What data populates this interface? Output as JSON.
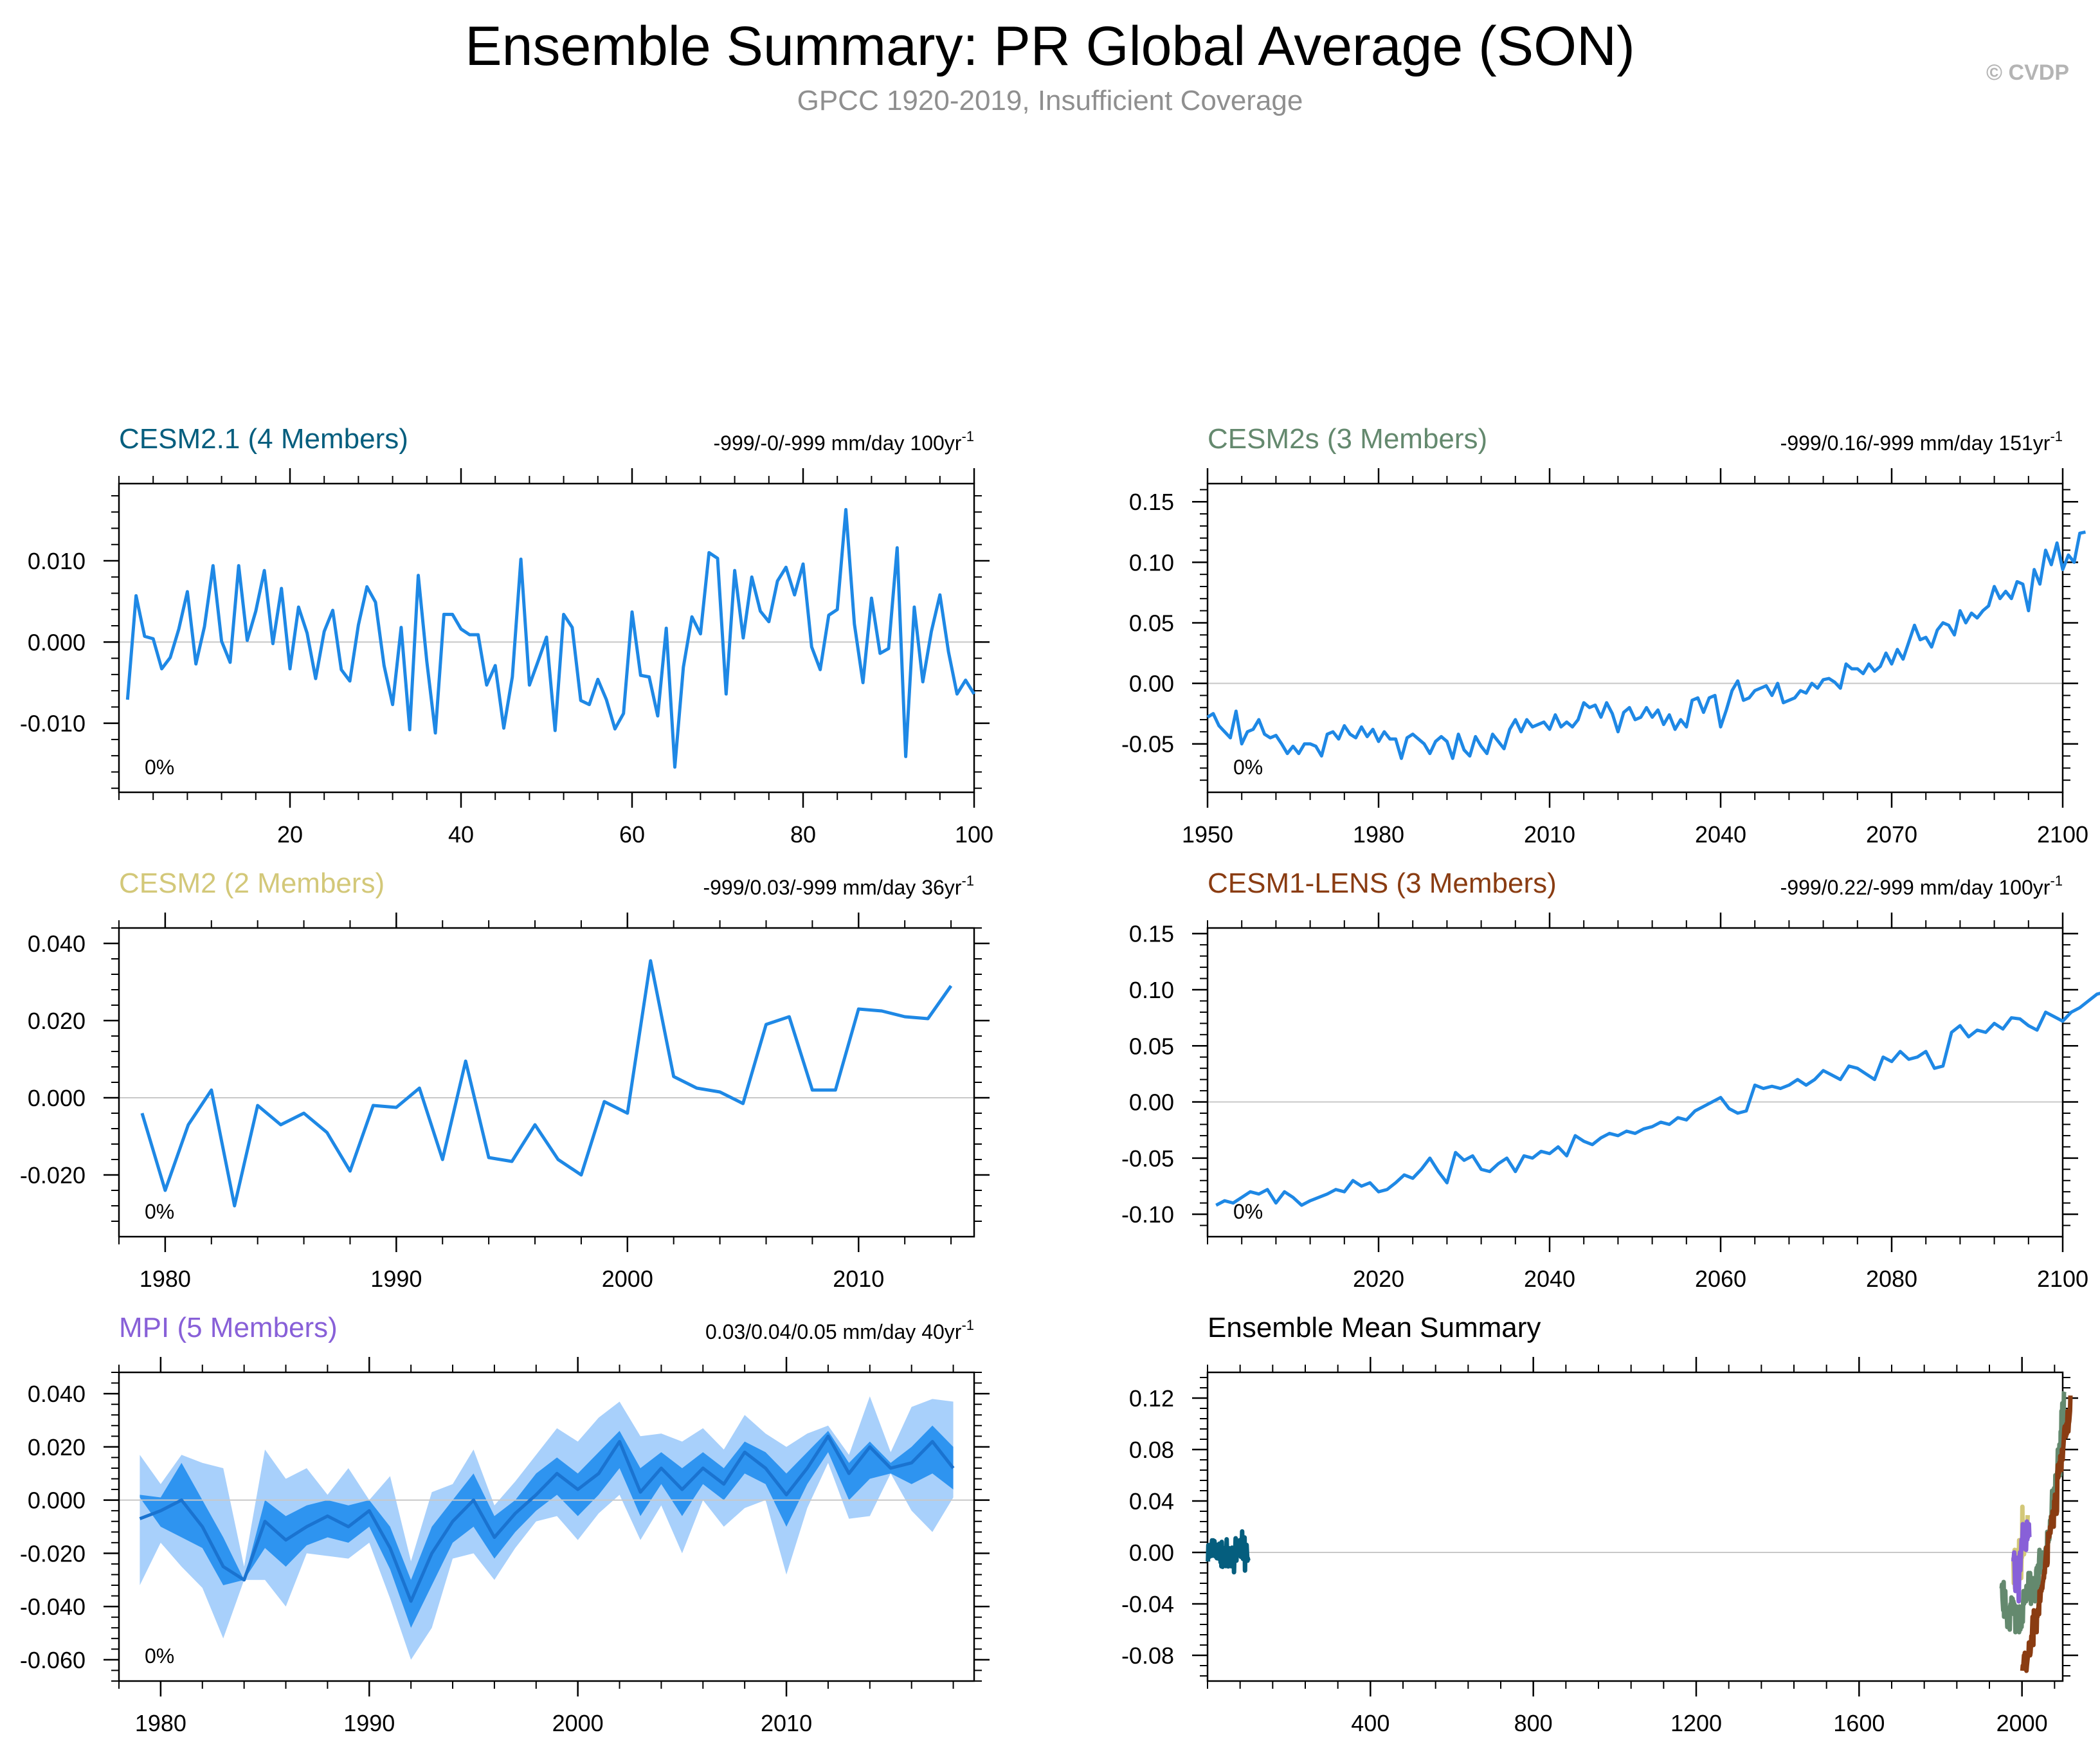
{
  "header": {
    "title": "Ensemble Summary: PR Global Average (SON)",
    "subtitle": "GPCC 1920-2019, Insufficient Coverage",
    "credit": "© CVDP"
  },
  "colors": {
    "line": "#1e88e5",
    "band_outer": "#a8d0fb",
    "band_inner": "#2e94f0",
    "zero_line": "#c8c8c8",
    "cesm21": "#055e7e",
    "cesm2s": "#64896e",
    "cesm2": "#d3c879",
    "cesm1lens": "#8a3c12",
    "mpi": "#8860d8"
  },
  "chart_data": [
    {
      "id": "cesm21",
      "type": "line",
      "title": "CESM2.1 (4 Members)",
      "title_color": "#055e7e",
      "trend": "-999/-0/-999 mm/day 100yr",
      "trend_sup": "-1",
      "inset": "0%",
      "xlim": [
        0,
        100
      ],
      "ylim": [
        -0.0185,
        0.0195
      ],
      "xticks": [
        20,
        40,
        60,
        80,
        100
      ],
      "xtick_labels": [
        "20",
        "40",
        "60",
        "80",
        "100"
      ],
      "yticks": [
        -0.01,
        0.0,
        0.01
      ],
      "ytick_labels": [
        "-0.010",
        "0.000",
        "0.010"
      ],
      "x_start": 1,
      "x_step": 1,
      "y": [
        -0.0071,
        0.0057,
        0.0007,
        0.0004,
        -0.0033,
        -0.0019,
        0.0016,
        0.0062,
        -0.0027,
        0.0019,
        0.0094,
        0.0001,
        -0.0025,
        0.0094,
        0.0002,
        0.0038,
        0.0088,
        -0.0002,
        0.0066,
        -0.0033,
        0.0043,
        0.0011,
        -0.0045,
        0.0013,
        0.0039,
        -0.0034,
        -0.0048,
        0.0021,
        0.0068,
        0.0049,
        -0.0029,
        -0.0077,
        0.0018,
        -0.0108,
        0.0082,
        -0.0024,
        -0.0112,
        0.0034,
        0.0034,
        0.0016,
        0.0009,
        0.0009,
        -0.0053,
        -0.0029,
        -0.0106,
        -0.0043,
        0.0102,
        -0.0053,
        -0.0024,
        0.0006,
        -0.0109,
        0.0034,
        0.0018,
        -0.0072,
        -0.0077,
        -0.0046,
        -0.0071,
        -0.0107,
        -0.0088,
        0.0037,
        -0.0041,
        -0.0043,
        -0.0091,
        0.0017,
        -0.0154,
        -0.0031,
        0.0031,
        0.001,
        0.011,
        0.0103,
        -0.0064,
        0.0088,
        0.0005,
        0.008,
        0.0038,
        0.0025,
        0.0075,
        0.0092,
        0.0058,
        0.0096,
        -0.0006,
        -0.0034,
        0.0033,
        0.004,
        0.0163,
        0.0022,
        -0.005,
        0.0054,
        -0.0014,
        -0.0008,
        0.0116,
        -0.0141,
        0.0043,
        -0.0049,
        0.0013,
        0.0058,
        -0.0012,
        -0.0064,
        -0.0047,
        -0.0064
      ]
    },
    {
      "id": "cesm2s",
      "type": "line",
      "title": "CESM2s (3 Members)",
      "title_color": "#64896e",
      "trend": "-999/0.16/-999 mm/day 151yr",
      "trend_sup": "-1",
      "inset": "0%",
      "xlim": [
        1950,
        2100
      ],
      "ylim": [
        -0.09,
        0.165
      ],
      "xticks": [
        1950,
        1980,
        2010,
        2040,
        2070,
        2100
      ],
      "xtick_labels": [
        "1950",
        "1980",
        "2010",
        "2040",
        "2070",
        "2100"
      ],
      "yticks": [
        -0.05,
        0.0,
        0.05,
        0.1,
        0.15
      ],
      "ytick_labels": [
        "-0.05",
        "0.00",
        "0.05",
        "0.10",
        "0.15"
      ],
      "x_start": 1950,
      "x_step": 1,
      "y": [
        -0.028,
        -0.025,
        -0.035,
        -0.04,
        -0.045,
        -0.023,
        -0.05,
        -0.04,
        -0.038,
        -0.03,
        -0.042,
        -0.045,
        -0.043,
        -0.05,
        -0.058,
        -0.052,
        -0.058,
        -0.05,
        -0.05,
        -0.052,
        -0.06,
        -0.042,
        -0.04,
        -0.046,
        -0.035,
        -0.042,
        -0.045,
        -0.036,
        -0.044,
        -0.038,
        -0.048,
        -0.04,
        -0.046,
        -0.046,
        -0.062,
        -0.045,
        -0.042,
        -0.046,
        -0.05,
        -0.058,
        -0.048,
        -0.044,
        -0.048,
        -0.062,
        -0.042,
        -0.055,
        -0.06,
        -0.044,
        -0.052,
        -0.058,
        -0.042,
        -0.048,
        -0.054,
        -0.038,
        -0.03,
        -0.04,
        -0.03,
        -0.036,
        -0.034,
        -0.032,
        -0.038,
        -0.026,
        -0.036,
        -0.032,
        -0.036,
        -0.03,
        -0.016,
        -0.02,
        -0.018,
        -0.028,
        -0.016,
        -0.025,
        -0.04,
        -0.024,
        -0.02,
        -0.03,
        -0.028,
        -0.02,
        -0.028,
        -0.022,
        -0.034,
        -0.026,
        -0.038,
        -0.03,
        -0.036,
        -0.014,
        -0.012,
        -0.024,
        -0.012,
        -0.01,
        -0.036,
        -0.022,
        -0.006,
        0.002,
        -0.014,
        -0.012,
        -0.006,
        -0.004,
        -0.002,
        -0.01,
        0.0,
        -0.016,
        -0.014,
        -0.012,
        -0.006,
        -0.008,
        0.0,
        -0.004,
        0.003,
        0.004,
        0.001,
        -0.004,
        0.016,
        0.012,
        0.012,
        0.008,
        0.016,
        0.01,
        0.014,
        0.025,
        0.016,
        0.028,
        0.02,
        0.034,
        0.048,
        0.036,
        0.038,
        0.03,
        0.044,
        0.05,
        0.048,
        0.04,
        0.06,
        0.05,
        0.058,
        0.054,
        0.06,
        0.064,
        0.08,
        0.07,
        0.076,
        0.07,
        0.084,
        0.082,
        0.06,
        0.094,
        0.082,
        0.11,
        0.098,
        0.116,
        0.094,
        0.106,
        0.1,
        0.124,
        0.125
      ]
    },
    {
      "id": "cesm2",
      "type": "line",
      "title": "CESM2 (2 Members)",
      "title_color": "#d3c879",
      "trend": "-999/0.03/-999 mm/day 36yr",
      "trend_sup": "-1",
      "inset": "0%",
      "xlim": [
        1978,
        2015
      ],
      "ylim": [
        -0.036,
        0.044
      ],
      "xticks": [
        1980,
        1990,
        2000,
        2010
      ],
      "xtick_labels": [
        "1980",
        "1990",
        "2000",
        "2010"
      ],
      "yticks": [
        -0.02,
        0.0,
        0.02,
        0.04
      ],
      "ytick_labels": [
        "-0.020",
        "0.000",
        "0.020",
        "0.040"
      ],
      "x_start": 1979,
      "x_step": 1,
      "y": [
        -0.004,
        -0.024,
        -0.007,
        0.002,
        -0.028,
        -0.002,
        -0.007,
        -0.004,
        -0.009,
        -0.019,
        -0.002,
        -0.0025,
        0.0025,
        -0.016,
        0.0095,
        -0.0155,
        -0.0165,
        -0.007,
        -0.016,
        -0.02,
        -0.001,
        -0.004,
        0.0355,
        0.0055,
        0.0025,
        0.0015,
        -0.0015,
        0.019,
        0.021,
        0.002,
        0.002,
        0.023,
        0.0225,
        0.021,
        0.0205,
        0.029
      ]
    },
    {
      "id": "cesm1lens",
      "type": "line",
      "title": "CESM1-LENS (3 Members)",
      "title_color": "#8a3c12",
      "trend": "-999/0.22/-999 mm/day 100yr",
      "trend_sup": "-1",
      "inset": "0%",
      "xlim": [
        2000,
        2100
      ],
      "ylim": [
        -0.12,
        0.155
      ],
      "xticks": [
        2020,
        2040,
        2060,
        2080,
        2100
      ],
      "xtick_labels": [
        "2020",
        "2040",
        "2060",
        "2080",
        "2100"
      ],
      "yticks": [
        -0.1,
        -0.05,
        0.0,
        0.05,
        0.1,
        0.15
      ],
      "ytick_labels": [
        "-0.10",
        "-0.05",
        "0.00",
        "0.05",
        "0.10",
        "0.15"
      ],
      "x_start": 2001,
      "x_step": 1,
      "y": [
        -0.092,
        -0.088,
        -0.09,
        -0.085,
        -0.08,
        -0.082,
        -0.078,
        -0.09,
        -0.08,
        -0.085,
        -0.092,
        -0.088,
        -0.085,
        -0.082,
        -0.078,
        -0.08,
        -0.07,
        -0.075,
        -0.072,
        -0.08,
        -0.078,
        -0.072,
        -0.065,
        -0.068,
        -0.06,
        -0.05,
        -0.062,
        -0.072,
        -0.045,
        -0.052,
        -0.048,
        -0.06,
        -0.062,
        -0.055,
        -0.05,
        -0.062,
        -0.048,
        -0.05,
        -0.044,
        -0.046,
        -0.04,
        -0.048,
        -0.03,
        -0.035,
        -0.038,
        -0.032,
        -0.028,
        -0.03,
        -0.026,
        -0.028,
        -0.024,
        -0.022,
        -0.018,
        -0.02,
        -0.014,
        -0.016,
        -0.008,
        -0.004,
        0.0,
        0.004,
        -0.006,
        -0.01,
        -0.008,
        0.015,
        0.012,
        0.014,
        0.012,
        0.015,
        0.02,
        0.015,
        0.02,
        0.028,
        0.024,
        0.02,
        0.032,
        0.03,
        0.025,
        0.02,
        0.04,
        0.036,
        0.045,
        0.038,
        0.04,
        0.045,
        0.03,
        0.032,
        0.062,
        0.068,
        0.058,
        0.064,
        0.062,
        0.07,
        0.065,
        0.075,
        0.074,
        0.068,
        0.064,
        0.08,
        0.076,
        0.072,
        0.08,
        0.084,
        0.09,
        0.096,
        0.098,
        0.092,
        0.098,
        0.09,
        0.1,
        0.092,
        0.1,
        0.11,
        0.098,
        0.094,
        0.1,
        0.102,
        0.106,
        0.11,
        0.122
      ]
    },
    {
      "id": "mpi",
      "type": "area",
      "title": "MPI (5 Members)",
      "title_color": "#8860d8",
      "trend": "0.03/0.04/0.05 mm/day 40yr",
      "trend_sup": "-1",
      "inset": "0%",
      "xlim": [
        1978,
        2019
      ],
      "ylim": [
        -0.068,
        0.048
      ],
      "xticks": [
        1980,
        1990,
        2000,
        2010
      ],
      "xtick_labels": [
        "1980",
        "1990",
        "2000",
        "2010"
      ],
      "yticks": [
        -0.06,
        -0.04,
        -0.02,
        0.0,
        0.02,
        0.04
      ],
      "ytick_labels": [
        "-0.060",
        "-0.040",
        "-0.020",
        "0.000",
        "0.020",
        "0.040"
      ],
      "x": [
        1979,
        1980,
        1981,
        1982,
        1983,
        1984,
        1985,
        1986,
        1987,
        1988,
        1989,
        1990,
        1991,
        1992,
        1993,
        1994,
        1995,
        1996,
        1997,
        1998,
        1999,
        2000,
        2001,
        2002,
        2003,
        2004,
        2005,
        2006,
        2007,
        2008,
        2009,
        2010,
        2011,
        2012,
        2013,
        2014,
        2015,
        2016,
        2017,
        2018
      ],
      "mean": [
        -0.007,
        -0.004,
        0.0,
        -0.01,
        -0.025,
        -0.03,
        -0.008,
        -0.015,
        -0.01,
        -0.006,
        -0.01,
        -0.004,
        -0.018,
        -0.038,
        -0.02,
        -0.008,
        0.0,
        -0.014,
        -0.005,
        0.002,
        0.01,
        0.004,
        0.01,
        0.022,
        0.003,
        0.012,
        0.004,
        0.012,
        0.006,
        0.018,
        0.012,
        0.002,
        0.012,
        0.024,
        0.01,
        0.02,
        0.012,
        0.014,
        0.022,
        0.012
      ],
      "min": [
        -0.032,
        -0.016,
        -0.025,
        -0.033,
        -0.052,
        -0.03,
        -0.03,
        -0.04,
        -0.02,
        -0.021,
        -0.022,
        -0.016,
        -0.037,
        -0.06,
        -0.048,
        -0.022,
        -0.02,
        -0.03,
        -0.018,
        -0.008,
        -0.006,
        -0.015,
        -0.005,
        0.002,
        -0.015,
        -0.002,
        -0.02,
        0.0,
        -0.01,
        -0.003,
        0.0,
        -0.028,
        -0.003,
        0.014,
        -0.007,
        -0.006,
        0.01,
        -0.004,
        -0.012,
        0.001
      ],
      "p25": [
        0.001,
        -0.01,
        -0.014,
        -0.018,
        -0.032,
        -0.03,
        -0.018,
        -0.025,
        -0.017,
        -0.014,
        -0.016,
        -0.01,
        -0.026,
        -0.048,
        -0.032,
        -0.016,
        -0.01,
        -0.022,
        -0.012,
        -0.004,
        0.002,
        -0.006,
        0.002,
        0.012,
        -0.006,
        0.006,
        -0.006,
        0.006,
        0.0,
        0.01,
        0.006,
        -0.01,
        0.006,
        0.018,
        0.0,
        0.008,
        0.01,
        0.006,
        0.01,
        0.004
      ],
      "p75": [
        0.002,
        0.001,
        0.014,
        0.0,
        -0.014,
        -0.03,
        0.0,
        -0.006,
        -0.002,
        0.0,
        -0.002,
        0.0,
        -0.01,
        -0.03,
        -0.01,
        0.0,
        0.01,
        -0.006,
        0.0,
        0.01,
        0.016,
        0.01,
        0.018,
        0.026,
        0.012,
        0.018,
        0.012,
        0.018,
        0.012,
        0.022,
        0.018,
        0.01,
        0.018,
        0.026,
        0.014,
        0.022,
        0.014,
        0.02,
        0.028,
        0.02
      ],
      "max": [
        0.017,
        0.006,
        0.017,
        0.014,
        0.012,
        -0.025,
        0.019,
        0.008,
        0.012,
        0.002,
        0.012,
        0.0,
        0.009,
        -0.023,
        0.003,
        0.006,
        0.019,
        -0.002,
        0.007,
        0.017,
        0.027,
        0.022,
        0.031,
        0.037,
        0.024,
        0.025,
        0.022,
        0.027,
        0.019,
        0.032,
        0.025,
        0.02,
        0.025,
        0.028,
        0.017,
        0.039,
        0.018,
        0.035,
        0.038,
        0.037
      ]
    },
    {
      "id": "summary",
      "type": "line",
      "title": "Ensemble Mean Summary",
      "title_color": "#000000",
      "xlim": [
        0,
        2100
      ],
      "ylim": [
        -0.1,
        0.14
      ],
      "xticks": [
        400,
        800,
        1200,
        1600,
        2000
      ],
      "xtick_labels": [
        "400",
        "800",
        "1200",
        "1600",
        "2000"
      ],
      "yticks": [
        -0.08,
        -0.04,
        0.0,
        0.04,
        0.08,
        0.12
      ],
      "ytick_labels": [
        "-0.08",
        "-0.04",
        "0.00",
        "0.04",
        "0.08",
        "0.12"
      ],
      "series_order": [
        "cesm21",
        "cesm2s",
        "cesm2",
        "mpi",
        "cesm1lens"
      ]
    }
  ]
}
